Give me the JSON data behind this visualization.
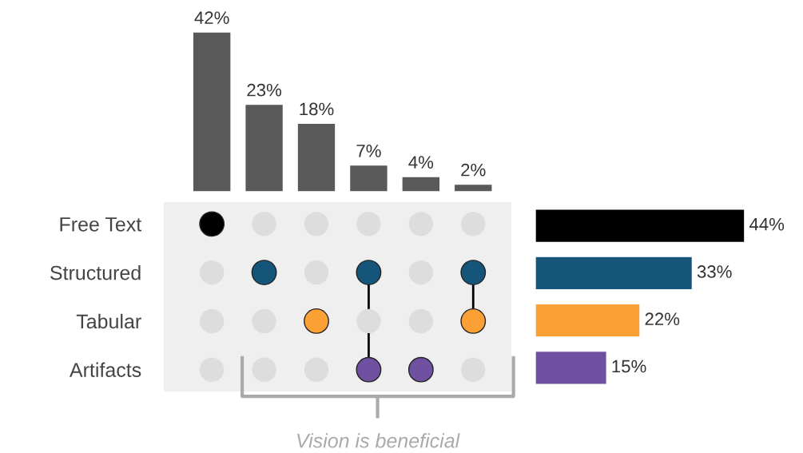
{
  "chart_data": [
    {
      "type": "bar",
      "categories": [
        null,
        null,
        null,
        null,
        null,
        null
      ],
      "values": [
        42,
        23,
        18,
        7,
        4,
        2
      ],
      "color": "#595959",
      "value_labels": [
        "42%",
        "23%",
        "18%",
        "7%",
        "4%",
        "2%"
      ],
      "tick_labels": false
    },
    {
      "type": "other",
      "categories": [
        null,
        null,
        null,
        null,
        null,
        null
      ],
      "y_categories": [
        "Free Text",
        "Structured",
        "Tabular",
        "Artifacts"
      ],
      "cells": [
        [
          true,
          false,
          false,
          false,
          false,
          false
        ],
        [
          false,
          true,
          false,
          true,
          false,
          true
        ],
        [
          false,
          false,
          true,
          false,
          false,
          true
        ],
        [
          false,
          false,
          false,
          true,
          true,
          false
        ]
      ],
      "colors": [
        "#000000",
        "#15557a",
        "#fba035",
        "#7050a0"
      ],
      "annotations": [
        "Vision is beneficial"
      ]
    },
    {
      "type": "bar",
      "orientation": "horizontal",
      "categories": [
        null,
        null,
        null,
        null
      ],
      "values": [
        44,
        33,
        22,
        15
      ],
      "colors": [
        "#000000",
        "#15557a",
        "#fba035",
        "#7050a0"
      ],
      "value_labels": [
        "44%",
        "33%",
        "22%",
        "15%"
      ],
      "tick_labels": false
    }
  ]
}
